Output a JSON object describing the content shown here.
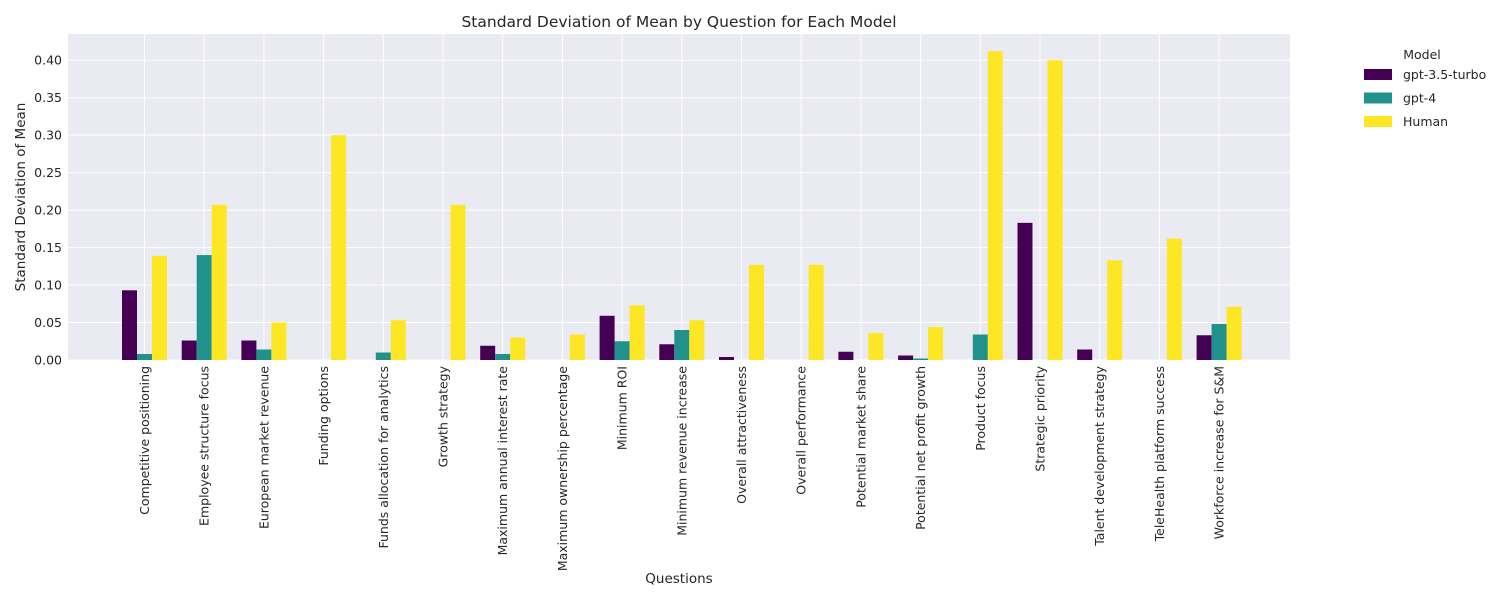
{
  "chart_data": {
    "type": "bar",
    "title": "Standard Deviation of Mean by Question for Each Model",
    "xlabel": "Questions",
    "ylabel": "Standard Deviation of Mean",
    "ylim": [
      0,
      0.435
    ],
    "yticks": [
      0.0,
      0.05,
      0.1,
      0.15,
      0.2,
      0.25,
      0.3,
      0.35,
      0.4
    ],
    "ytick_labels": [
      "0.00",
      "0.05",
      "0.10",
      "0.15",
      "0.20",
      "0.25",
      "0.30",
      "0.35",
      "0.40"
    ],
    "grid": true,
    "legend": {
      "title": "Model",
      "placement": "outside-top-right"
    },
    "categories": [
      "Competitive positioning",
      "Employee structure focus",
      "European market revenue",
      "Funding options",
      "Funds allocation for analytics",
      "Growth strategy",
      "Maximum annual interest rate",
      "Maximum ownership percentage",
      "Minimum ROI",
      "Minimum revenue increase",
      "Overall attractiveness",
      "Overall performance",
      "Potential market share",
      "Potential net profit growth",
      "Product focus",
      "Strategic priority",
      "Talent development strategy",
      "TeleHealth platform success",
      "Workforce increase for S&M"
    ],
    "series": [
      {
        "name": "gpt-3.5-turbo",
        "color": "#440154",
        "values": [
          0.093,
          0.026,
          0.026,
          0,
          0,
          0,
          0.019,
          0,
          0.059,
          0.021,
          0.004,
          0,
          0.011,
          0.006,
          0,
          0.183,
          0.014,
          0,
          0.033
        ]
      },
      {
        "name": "gpt-4",
        "color": "#21918c",
        "values": [
          0.008,
          0.14,
          0.014,
          0,
          0.01,
          0,
          0.008,
          0,
          0.025,
          0.04,
          0,
          0,
          0,
          0.002,
          0.034,
          0,
          0,
          0,
          0.048
        ]
      },
      {
        "name": "Human",
        "color": "#fde725",
        "values": [
          0.139,
          0.207,
          0.05,
          0.3,
          0.053,
          0.207,
          0.03,
          0.034,
          0.073,
          0.053,
          0.127,
          0.127,
          0.036,
          0.044,
          0.412,
          0.4,
          0.133,
          0.162,
          0.071
        ]
      }
    ]
  }
}
